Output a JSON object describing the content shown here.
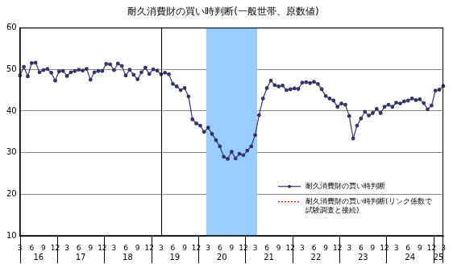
{
  "chart_data": {
    "type": "line",
    "title": "耐久消費財の買い時判断(一般世帯、原数値)",
    "categories": [
      "3",
      null,
      null,
      "6",
      null,
      null,
      "9",
      null,
      null,
      "12",
      null,
      null,
      "3",
      null,
      null,
      "6",
      null,
      null,
      "9",
      null,
      null,
      "12",
      null,
      null,
      "3",
      null,
      null,
      "6",
      null,
      null,
      "9",
      null,
      null,
      "12",
      null,
      null,
      "3",
      null,
      null,
      "6",
      null,
      null,
      "9",
      null,
      null,
      "12",
      null,
      null,
      "3",
      null,
      null,
      "6",
      null,
      null,
      "9",
      null,
      null,
      "12",
      null,
      null,
      "3",
      null,
      null,
      "6",
      null,
      null,
      "9",
      null,
      null,
      "12",
      null,
      null,
      "3",
      null,
      null,
      "6",
      null,
      null,
      "9",
      null,
      null,
      "12",
      null,
      null,
      "3",
      null,
      null,
      "6",
      null,
      null,
      "9",
      null,
      null,
      "12",
      null,
      null,
      "3",
      null,
      null,
      "6",
      null,
      null,
      "9",
      null,
      null,
      "12",
      null,
      null,
      "3"
    ],
    "years": [
      {
        "label": "16",
        "first": 0,
        "last": 9
      },
      {
        "label": "17",
        "first": 10,
        "last": 21
      },
      {
        "label": "18",
        "first": 22,
        "last": 33
      },
      {
        "label": "19",
        "first": 34,
        "last": 45
      },
      {
        "label": "20",
        "first": 46,
        "last": 57
      },
      {
        "label": "21",
        "first": 58,
        "last": 69
      },
      {
        "label": "22",
        "first": 70,
        "last": 81
      },
      {
        "label": "23",
        "first": 82,
        "last": 93
      },
      {
        "label": "24",
        "first": 94,
        "last": 105
      },
      {
        "label": "25",
        "first": 106,
        "last": 108
      }
    ],
    "shaded": {
      "first": 48,
      "last": 60,
      "color": "#99ccff"
    },
    "vlines": [
      36
    ],
    "series": [
      {
        "name": "耐久消費財の買い時判断",
        "color": "#333366",
        "marker": "circle",
        "line_style": "solid",
        "values": [
          48.5,
          50.6,
          48.3,
          51.5,
          51.6,
          49.3,
          49.8,
          50.1,
          49.2,
          47.3,
          49.5,
          49.6,
          48.4,
          49.3,
          49.6,
          49.9,
          49.7,
          50.1,
          47.5,
          49.3,
          49.6,
          49.6,
          51.3,
          51.2,
          49.8,
          51.4,
          50.8,
          48.5,
          49.9,
          48.7,
          47.6,
          49.3,
          50.4,
          48.9,
          50.0,
          49.7,
          48.8,
          49.2,
          48.8,
          46.5,
          45.9,
          45.0,
          45.5,
          43.5,
          38.0,
          37.0,
          36.5,
          35.0,
          36.0,
          34.5,
          33.0,
          31.5,
          29.0,
          28.5,
          30.2,
          28.6,
          29.7,
          29.4,
          30.5,
          31.5,
          34.2,
          39.0,
          43.0,
          45.5,
          47.3,
          46.2,
          45.9,
          46.1,
          45.0,
          45.2,
          45.4,
          45.3,
          46.8,
          46.9,
          46.7,
          47.0,
          46.5,
          45.2,
          43.6,
          43.0,
          42.5,
          41.0,
          41.8,
          41.5,
          38.8,
          33.4,
          36.5,
          38.2,
          39.8,
          38.9,
          39.5,
          40.5,
          39.5,
          41.0,
          41.5,
          41.0,
          42.0,
          41.8,
          42.3,
          42.5,
          43.0,
          42.6,
          42.8,
          41.9,
          40.4,
          41.3,
          44.9,
          45.1,
          46.0
        ]
      },
      {
        "name": "耐久消費財の買い時判断(リンク係数で試験調査と接続)",
        "color": "#ff0000",
        "marker": "none",
        "line_style": "dotted",
        "values": [
          null,
          null,
          null,
          null,
          null,
          null,
          null,
          null,
          null,
          null,
          null,
          null,
          null,
          null,
          null,
          null,
          null,
          null,
          null,
          null,
          null,
          null,
          null,
          null,
          null,
          null,
          null,
          null,
          null,
          null,
          null,
          null,
          null,
          null,
          null,
          null,
          null,
          null,
          null,
          null,
          null,
          null,
          null,
          null,
          null,
          null,
          null,
          null,
          null,
          null,
          null,
          null,
          null,
          null,
          null,
          null,
          null,
          null,
          null,
          null,
          null,
          null,
          null,
          null,
          null,
          null,
          null,
          null,
          null,
          null,
          null,
          null,
          null,
          null,
          null,
          null,
          null,
          null,
          null,
          null,
          null,
          null,
          null,
          null,
          null,
          null,
          null,
          null,
          null,
          null,
          null,
          null,
          null,
          null,
          null,
          null,
          null,
          null,
          null,
          null,
          null,
          null,
          null,
          null,
          null,
          null,
          null,
          null,
          null
        ]
      }
    ],
    "ylim": [
      10,
      60
    ],
    "yticks": [
      10,
      20,
      30,
      40,
      50,
      60
    ],
    "grid": true,
    "legend": "lower right"
  }
}
